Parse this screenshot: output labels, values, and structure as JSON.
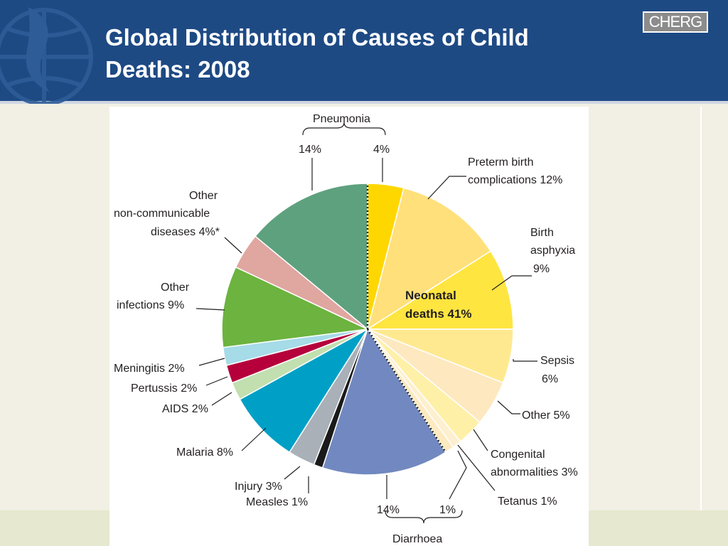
{
  "header": {
    "title_line1": "Global Distribution of Causes of Child",
    "title_line2": "Deaths: 2008",
    "logo_text": "CHERG",
    "background_color": "#1e4a84"
  },
  "chart_data": {
    "type": "pie",
    "title": "",
    "unit": "%",
    "total_deaths_label": "Neonatal deaths 41%",
    "slices": [
      {
        "category": "Pneumonia (neonatal)",
        "value": 4,
        "label": "4%",
        "color": "#ffd700"
      },
      {
        "category": "Preterm birth complications",
        "value": 12,
        "label": "Preterm birth complications 12%",
        "color": "#ffe07a"
      },
      {
        "category": "Birth asphyxia",
        "value": 9,
        "label": "Birth asphyxia 9%",
        "color": "#ffe540"
      },
      {
        "category": "Sepsis",
        "value": 6,
        "label": "Sepsis 6%",
        "color": "#ffe990"
      },
      {
        "category": "Other",
        "value": 5,
        "label": "Other 5%",
        "color": "#fde8c0"
      },
      {
        "category": "Congenital abnormalities",
        "value": 3,
        "label": "Congenital abnormalities 3%",
        "color": "#fff0a8"
      },
      {
        "category": "Tetanus",
        "value": 1,
        "label": "Tetanus 1%",
        "color": "#fdf0d0"
      },
      {
        "category": "Diarrhoea (neonatal)",
        "value": 1,
        "label": "1%",
        "color": "#fdeac0"
      },
      {
        "category": "Diarrhoea",
        "value": 14,
        "label": "14%",
        "color": "#7189c0"
      },
      {
        "category": "Measles",
        "value": 1,
        "label": "Measles 1%",
        "color": "#1a1a1a"
      },
      {
        "category": "Injury",
        "value": 3,
        "label": "Injury 3%",
        "color": "#a9b0b8"
      },
      {
        "category": "Malaria",
        "value": 8,
        "label": "Malaria 8%",
        "color": "#00a0c6"
      },
      {
        "category": "AIDS",
        "value": 2,
        "label": "AIDS 2%",
        "color": "#c2dfb0"
      },
      {
        "category": "Pertussis",
        "value": 2,
        "label": "Pertussis 2%",
        "color": "#b5003b"
      },
      {
        "category": "Meningitis",
        "value": 2,
        "label": "Meningitis 2%",
        "color": "#a6dbe8"
      },
      {
        "category": "Other infections",
        "value": 9,
        "label": "Other infections 9%",
        "color": "#6cb33f"
      },
      {
        "category": "Other non-communicable diseases",
        "value": 4,
        "label": "Other non-communicable diseases 4%*",
        "color": "#e0a6a0"
      },
      {
        "category": "Pneumonia",
        "value": 14,
        "label": "14%",
        "color": "#5ea17e"
      }
    ],
    "groups": [
      {
        "name": "Pneumonia",
        "labels": [
          "14%",
          "4%"
        ]
      },
      {
        "name": "Diarrhoea",
        "labels": [
          "14%",
          "1%"
        ]
      }
    ],
    "neonatal_label": {
      "line1": "Neonatal",
      "line2": "deaths 41%"
    }
  },
  "labels": {
    "pneumonia_group": "Pneumonia",
    "pneumonia_left": "14%",
    "pneumonia_right": "4%",
    "preterm_l1": "Preterm birth",
    "preterm_l2": "complications 12%",
    "asphyxia_l1": "Birth",
    "asphyxia_l2": "asphyxia",
    "asphyxia_l3": "9%",
    "sepsis_l1": "Sepsis",
    "sepsis_l2": "6%",
    "other_neonatal": "Other 5%",
    "congenital_l1": "Congenital",
    "congenital_l2": "abnormalities 3%",
    "tetanus": "Tetanus 1%",
    "diarrhoea_group": "Diarrhoea",
    "diarrhoea_left": "14%",
    "diarrhoea_right": "1%",
    "measles": "Measles 1%",
    "injury": "Injury 3%",
    "malaria": "Malaria 8%",
    "aids": "AIDS 2%",
    "pertussis": "Pertussis 2%",
    "meningitis": "Meningitis 2%",
    "infections_l1": "Other",
    "infections_l2": "infections 9%",
    "ncd_l1": "Other",
    "ncd_l2": "non-communicable",
    "ncd_l3": "diseases 4%*",
    "neonatal_l1": "Neonatal",
    "neonatal_l2": "deaths 41%"
  }
}
